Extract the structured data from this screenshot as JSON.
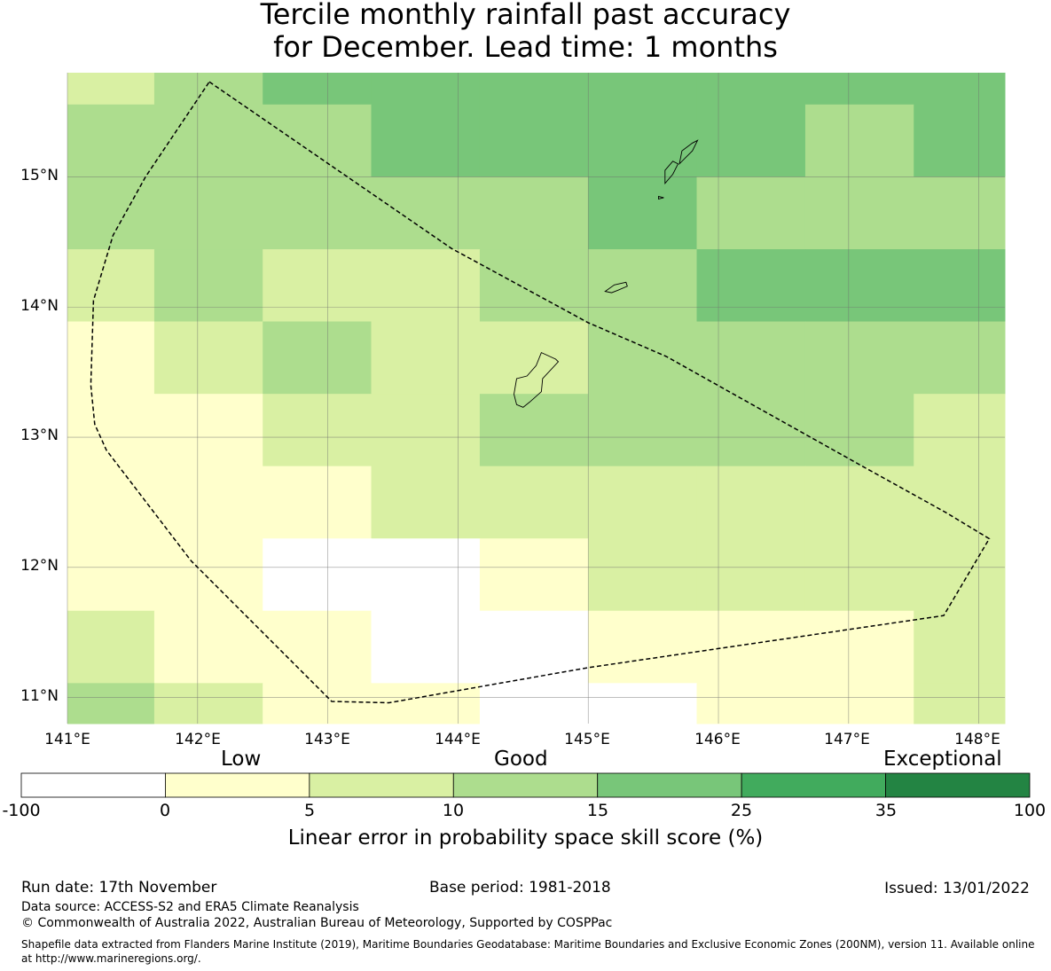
{
  "title": {
    "line1": "Tercile monthly rainfall past accuracy",
    "line2": "for December. Lead time: 1 months"
  },
  "map": {
    "lon_range": [
      141.0,
      148.2
    ],
    "lat_range": [
      10.8,
      15.8
    ],
    "lat_ticks": [
      {
        "value": 15,
        "label": "15°N"
      },
      {
        "value": 14,
        "label": "14°N"
      },
      {
        "value": 13,
        "label": "13°N"
      },
      {
        "value": 12,
        "label": "12°N"
      },
      {
        "value": 11,
        "label": "11°N"
      }
    ],
    "lon_ticks": [
      {
        "value": 141,
        "label": "141°E"
      },
      {
        "value": 142,
        "label": "142°E"
      },
      {
        "value": 143,
        "label": "143°E"
      },
      {
        "value": 144,
        "label": "144°E"
      },
      {
        "value": 145,
        "label": "145°E"
      },
      {
        "value": 146,
        "label": "146°E"
      },
      {
        "value": 147,
        "label": "147°E"
      },
      {
        "value": 148,
        "label": "148°E"
      }
    ],
    "grid_cols_lon": [
      141.0,
      141.667,
      142.5,
      143.333,
      144.167,
      145.0,
      145.833,
      146.667,
      147.5,
      148.2
    ],
    "grid_rows_lat": [
      15.8,
      15.556,
      15.0,
      14.444,
      13.889,
      13.333,
      12.778,
      12.222,
      11.667,
      11.111,
      10.8
    ],
    "cell_classes": [
      [
        1,
        2,
        3,
        3,
        3,
        3,
        3,
        3,
        3
      ],
      [
        2,
        2,
        2,
        3,
        3,
        3,
        3,
        2,
        3
      ],
      [
        2,
        2,
        2,
        2,
        2,
        3,
        2,
        2,
        2
      ],
      [
        1,
        2,
        1,
        1,
        2,
        2,
        3,
        3,
        3
      ],
      [
        0,
        1,
        2,
        1,
        1,
        2,
        2,
        2,
        2
      ],
      [
        0,
        0,
        1,
        1,
        2,
        2,
        2,
        2,
        1
      ],
      [
        0,
        0,
        0,
        1,
        1,
        1,
        1,
        1,
        1
      ],
      [
        0,
        0,
        -1,
        -1,
        0,
        1,
        1,
        1,
        1
      ],
      [
        1,
        0,
        0,
        -1,
        -1,
        0,
        0,
        0,
        1
      ],
      [
        2,
        1,
        0,
        0,
        -1,
        -1,
        0,
        0,
        1
      ]
    ],
    "eez_boundary": [
      [
        142.09,
        15.73
      ],
      [
        143.95,
        14.45
      ],
      [
        145.0,
        13.88
      ],
      [
        145.6,
        13.62
      ],
      [
        146.35,
        13.2
      ],
      [
        147.1,
        12.78
      ],
      [
        147.75,
        12.42
      ],
      [
        148.08,
        12.22
      ],
      [
        147.73,
        11.63
      ],
      [
        145.0,
        11.23
      ],
      [
        143.47,
        10.96
      ],
      [
        143.03,
        10.97
      ],
      [
        141.95,
        12.05
      ],
      [
        141.3,
        12.9
      ],
      [
        141.21,
        13.1
      ],
      [
        141.18,
        13.4
      ],
      [
        141.2,
        14.05
      ],
      [
        141.35,
        14.55
      ],
      [
        141.6,
        15.0
      ],
      [
        142.09,
        15.73
      ]
    ],
    "islands": [
      [
        [
          144.64,
          13.65
        ],
        [
          144.75,
          13.6
        ],
        [
          144.77,
          13.58
        ],
        [
          144.65,
          13.45
        ],
        [
          144.64,
          13.35
        ],
        [
          144.55,
          13.27
        ],
        [
          144.5,
          13.23
        ],
        [
          144.45,
          13.25
        ],
        [
          144.43,
          13.33
        ],
        [
          144.45,
          13.45
        ],
        [
          144.53,
          13.47
        ],
        [
          144.6,
          13.55
        ],
        [
          144.64,
          13.65
        ]
      ],
      [
        [
          145.13,
          14.12
        ],
        [
          145.2,
          14.17
        ],
        [
          145.29,
          14.19
        ],
        [
          145.3,
          14.16
        ],
        [
          145.23,
          14.13
        ],
        [
          145.18,
          14.11
        ],
        [
          145.13,
          14.12
        ]
      ],
      [
        [
          145.59,
          14.95
        ],
        [
          145.65,
          15.02
        ],
        [
          145.69,
          15.1
        ],
        [
          145.65,
          15.12
        ],
        [
          145.59,
          15.05
        ],
        [
          145.59,
          14.95
        ]
      ],
      [
        [
          145.7,
          15.1
        ],
        [
          145.72,
          15.2
        ],
        [
          145.8,
          15.26
        ],
        [
          145.84,
          15.28
        ],
        [
          145.8,
          15.2
        ],
        [
          145.75,
          15.15
        ],
        [
          145.7,
          15.1
        ]
      ],
      [
        [
          145.54,
          14.83
        ],
        [
          145.58,
          14.84
        ],
        [
          145.54,
          14.85
        ],
        [
          145.54,
          14.83
        ]
      ]
    ]
  },
  "colorbar": {
    "category_low": "Low",
    "category_good": "Good",
    "category_exceptional": "Exceptional",
    "ticks": [
      "-100",
      "0",
      "5",
      "10",
      "15",
      "25",
      "35",
      "100"
    ],
    "colors": [
      "#ffffff",
      "#ffffcc",
      "#d9f0a3",
      "#addd8e",
      "#78c679",
      "#41ab5d",
      "#238443"
    ],
    "label": "Linear error in probability space skill score (%)"
  },
  "footer": {
    "run_date": "Run date: 17th November",
    "base_period": "Base period: 1981-2018",
    "issued": "Issued: 13/01/2022",
    "data_source": "Data source: ACCESS-S2 and ERA5 Climate Reanalysis",
    "copyright": "© Commonwealth of Australia 2022, Australian Bureau of Meteorology, Supported by COSPPac",
    "shapefile": "Shapefile data extracted from Flanders Marine Institute (2019), Maritime Boundaries Geodatabase: Maritime Boundaries and Exclusive Economic Zones (200NM), version 11. Available online at http://www.marineregions.org/."
  }
}
